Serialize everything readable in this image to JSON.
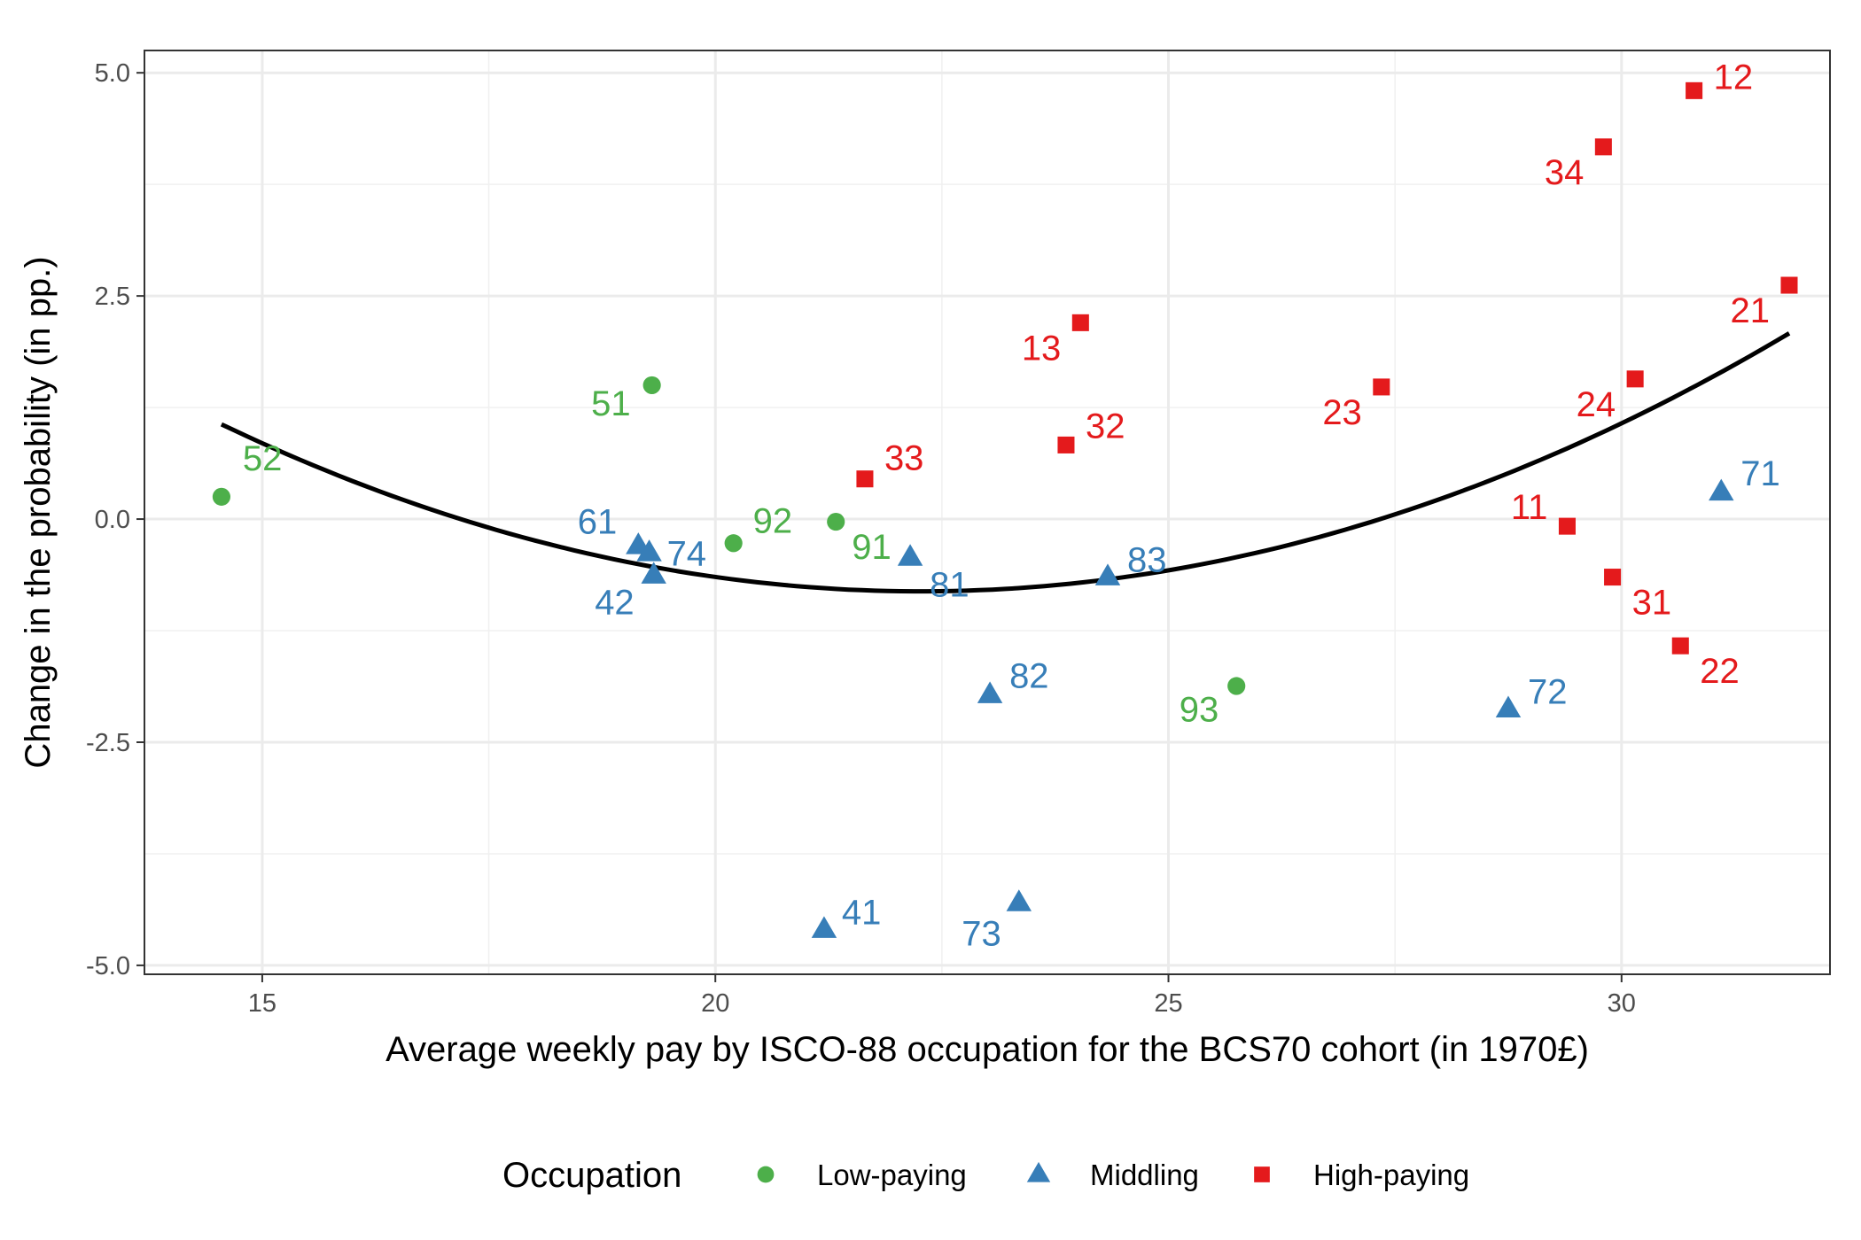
{
  "chart_data": {
    "type": "scatter",
    "xlabel": "Average weekly pay by ISCO-88 occupation for the BCS70 cohort (in 1970£)",
    "ylabel": "Change in the probability (in pp.)",
    "xlim": [
      13.7,
      32.3
    ],
    "ylim": [
      -5.1,
      5.25
    ],
    "x_ticks": [
      15,
      20,
      25,
      30
    ],
    "x_tick_labels": [
      "15",
      "20",
      "25",
      "30"
    ],
    "y_ticks": [
      5.0,
      2.5,
      0.0,
      -2.5,
      -5.0
    ],
    "y_tick_labels": [
      "5.0",
      "2.5",
      "0.0",
      "-2.5",
      "-5.0"
    ],
    "grid": true,
    "legend": {
      "title": "Occupation",
      "position": "bottom"
    },
    "colors": {
      "low": "#4daf4a",
      "middling": "#377eb8",
      "high": "#e41a1c",
      "fit": "#000000"
    },
    "series": [
      {
        "name": "Low-paying",
        "shape": "circle",
        "points": [
          {
            "label": "52",
            "x": 14.55,
            "y": 0.25
          },
          {
            "label": "51",
            "x": 19.3,
            "y": 1.5
          },
          {
            "label": "92",
            "x": 20.2,
            "y": -0.27
          },
          {
            "label": "91",
            "x": 21.33,
            "y": -0.03
          },
          {
            "label": "93",
            "x": 25.75,
            "y": -1.87
          }
        ]
      },
      {
        "name": "Middling",
        "shape": "triangle",
        "points": [
          {
            "label": "61",
            "x": 19.15,
            "y": -0.3
          },
          {
            "label": "74",
            "x": 19.27,
            "y": -0.38
          },
          {
            "label": "42",
            "x": 19.32,
            "y": -0.63
          },
          {
            "label": "81",
            "x": 22.15,
            "y": -0.43
          },
          {
            "label": "83",
            "x": 24.33,
            "y": -0.65
          },
          {
            "label": "82",
            "x": 23.03,
            "y": -1.97
          },
          {
            "label": "41",
            "x": 21.2,
            "y": -4.6
          },
          {
            "label": "73",
            "x": 23.35,
            "y": -4.3
          },
          {
            "label": "72",
            "x": 28.75,
            "y": -2.13
          },
          {
            "label": "71",
            "x": 31.1,
            "y": 0.3
          }
        ]
      },
      {
        "name": "High-paying",
        "shape": "square",
        "points": [
          {
            "label": "33",
            "x": 21.65,
            "y": 0.45
          },
          {
            "label": "13",
            "x": 24.03,
            "y": 2.2
          },
          {
            "label": "32",
            "x": 23.87,
            "y": 0.83
          },
          {
            "label": "23",
            "x": 27.35,
            "y": 1.48
          },
          {
            "label": "34",
            "x": 29.8,
            "y": 4.17
          },
          {
            "label": "12",
            "x": 30.8,
            "y": 4.8
          },
          {
            "label": "24",
            "x": 30.15,
            "y": 1.57
          },
          {
            "label": "21",
            "x": 31.85,
            "y": 2.62
          },
          {
            "label": "11",
            "x": 29.4,
            "y": -0.08
          },
          {
            "label": "31",
            "x": 29.9,
            "y": -0.65
          },
          {
            "label": "22",
            "x": 30.65,
            "y": -1.42
          }
        ]
      }
    ],
    "fit_line": {
      "type": "quadratic",
      "x": [
        14.55,
        16,
        17.5,
        19,
        20.5,
        22,
        23.5,
        25,
        26.5,
        28,
        29.5,
        31,
        31.85
      ],
      "y": [
        0.92,
        0.47,
        0.05,
        -0.36,
        -0.71,
        -0.88,
        -0.87,
        -0.67,
        -0.28,
        0.3,
        0.96,
        1.62,
        2.0
      ]
    }
  }
}
